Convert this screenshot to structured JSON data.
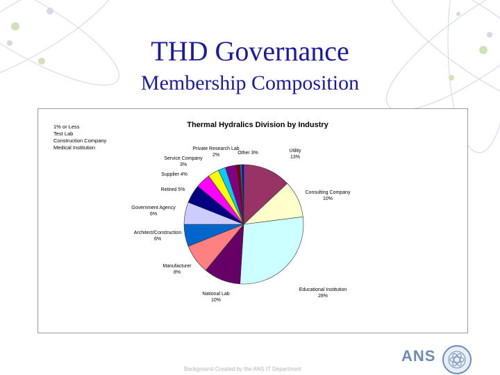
{
  "slide": {
    "title": "THD Governance",
    "subtitle": "Membership Composition",
    "footer": "Background Created by the ANS IT Department",
    "logo_text": "ANS"
  },
  "chart_data": {
    "type": "pie",
    "title": "Thermal Hydralics Division by Industry",
    "small_group": {
      "heading": "1% or Less",
      "items": [
        "Test Lab",
        "Construction Company",
        "Medical Institution"
      ]
    },
    "slices": [
      {
        "name": "Utility",
        "value": 13,
        "label": "13%",
        "color": "#993366"
      },
      {
        "name": "Consulting Company",
        "value": 10,
        "label": "10%",
        "color": "#ffffcc"
      },
      {
        "name": "Educational Institution",
        "value": 28,
        "label": "28%",
        "color": "#ccffff"
      },
      {
        "name": "National Lab",
        "value": 10,
        "label": "10%",
        "color": "#660066"
      },
      {
        "name": "Manufacturer",
        "value": 8,
        "label": "8%",
        "color": "#ff8080"
      },
      {
        "name": "Architect/Construction",
        "value": 6,
        "label": "6%",
        "color": "#0066cc"
      },
      {
        "name": "Government Agency",
        "value": 6,
        "label": "6%",
        "color": "#ccccff"
      },
      {
        "name": "Retired",
        "value": 5,
        "label": "5%",
        "color": "#000080"
      },
      {
        "name": "Supplier",
        "value": 4,
        "label": "4%",
        "color": "#ff00ff"
      },
      {
        "name": "Service Company",
        "value": 3,
        "label": "3%",
        "color": "#ffff00"
      },
      {
        "name": "Private Research Lab",
        "value": 2,
        "label": "2%",
        "color": "#00ccff"
      },
      {
        "name": "Other",
        "value": 3,
        "label": "3%",
        "color": "#800080"
      },
      {
        "name": "Test Lab",
        "value": 1,
        "label": "",
        "color": "#800000"
      },
      {
        "name": "Construction Company",
        "value": 0.5,
        "label": "",
        "color": "#008080"
      },
      {
        "name": "Medical Institution",
        "value": 0.5,
        "label": "",
        "color": "#0000ff"
      }
    ]
  }
}
